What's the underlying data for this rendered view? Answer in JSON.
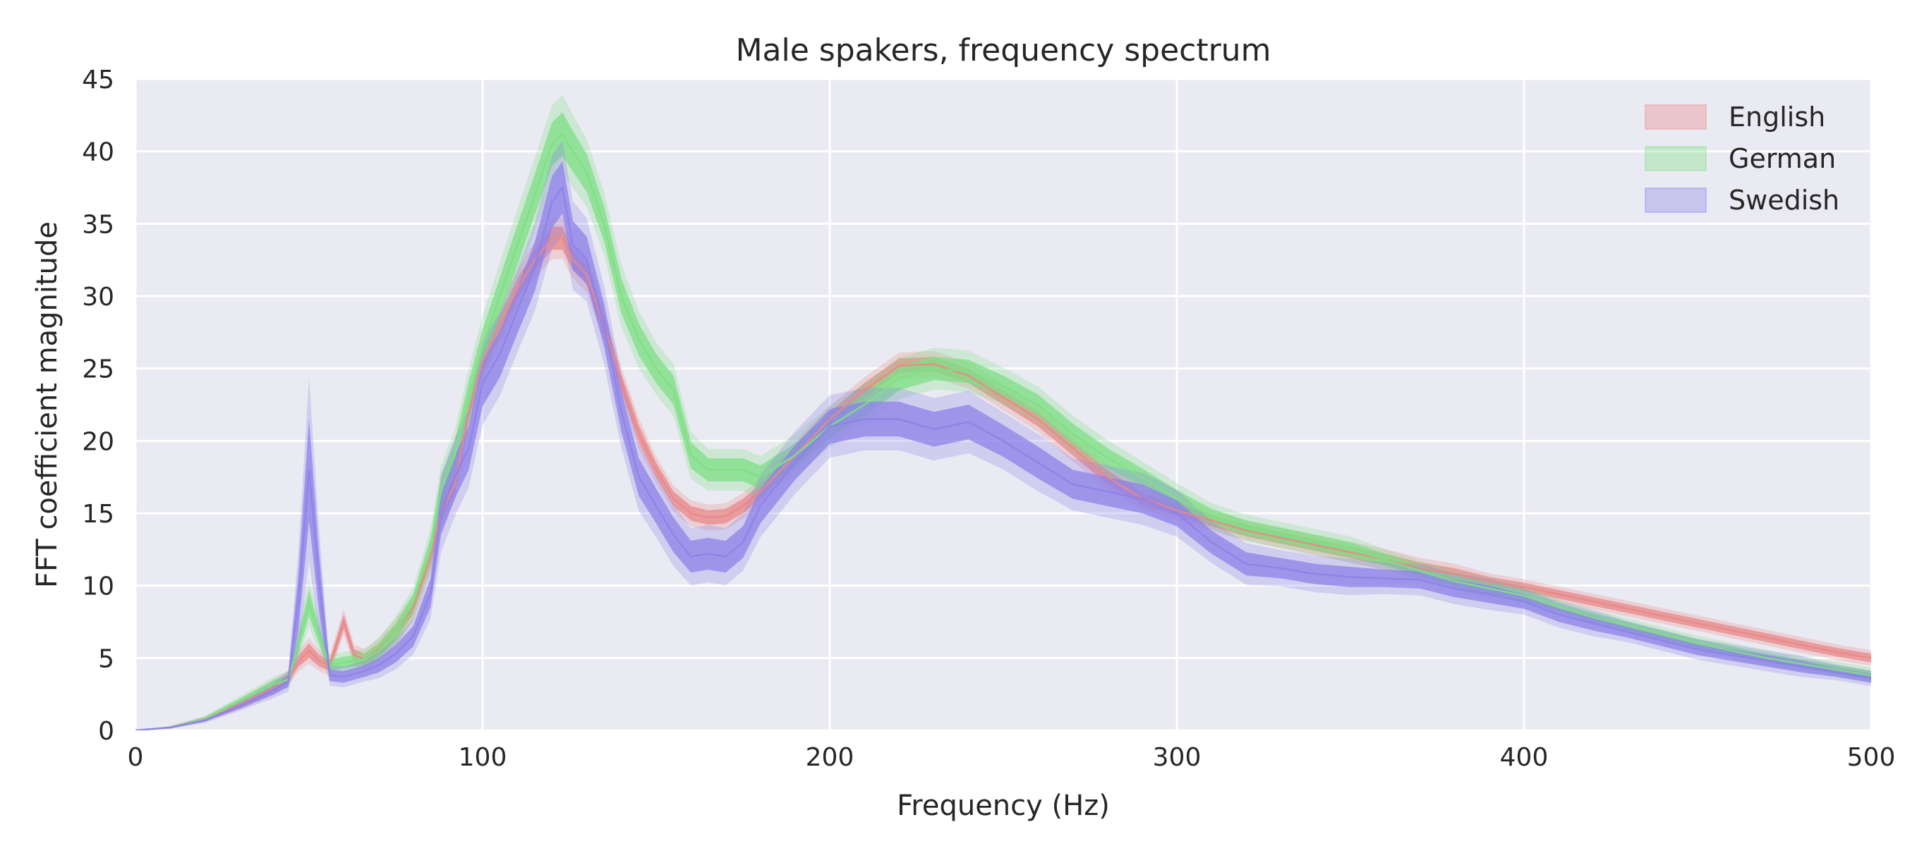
{
  "chart_data": {
    "type": "line",
    "title": "Male spakers, frequency spectrum",
    "xlabel": "Frequency (Hz)",
    "ylabel": "FFT coefficient magnitude",
    "xlim": [
      0,
      500
    ],
    "ylim": [
      0,
      45
    ],
    "xticks": [
      "0",
      "100",
      "200",
      "300",
      "400",
      "500"
    ],
    "yticks": [
      "0",
      "5",
      "10",
      "15",
      "20",
      "25",
      "30",
      "35",
      "40",
      "45"
    ],
    "grid": true,
    "legend_position": "top-right",
    "background": "#eaeaf2",
    "series": [
      {
        "name": "English",
        "color": "#e8888a",
        "x": [
          0,
          10,
          20,
          30,
          40,
          44,
          47,
          50,
          53,
          56,
          60,
          63,
          66,
          70,
          75,
          80,
          85,
          88,
          92,
          96,
          100,
          105,
          110,
          115,
          120,
          123,
          126,
          130,
          135,
          140,
          145,
          150,
          155,
          160,
          165,
          170,
          175,
          180,
          190,
          200,
          210,
          220,
          230,
          240,
          250,
          260,
          270,
          280,
          290,
          300,
          310,
          320,
          330,
          340,
          350,
          360,
          370,
          380,
          390,
          400,
          410,
          420,
          430,
          440,
          450,
          460,
          470,
          480,
          490,
          500
        ],
        "mean": [
          0,
          0.2,
          0.8,
          1.8,
          3.0,
          3.6,
          4.8,
          5.5,
          4.8,
          4.5,
          7.5,
          5.2,
          4.9,
          5.6,
          6.8,
          8.5,
          12.0,
          15.0,
          17.0,
          22.0,
          25.5,
          28.0,
          30.5,
          32.5,
          34.0,
          34.0,
          32.5,
          31.5,
          28.0,
          24.0,
          20.5,
          18.0,
          16.0,
          15.0,
          14.7,
          14.8,
          15.5,
          16.5,
          19.0,
          21.5,
          23.5,
          25.2,
          25.3,
          24.5,
          23.0,
          21.5,
          19.5,
          17.5,
          16.0,
          15.2,
          14.5,
          13.8,
          13.3,
          12.8,
          12.3,
          11.8,
          11.2,
          10.8,
          10.3,
          9.9,
          9.4,
          8.9,
          8.4,
          7.9,
          7.4,
          6.9,
          6.4,
          5.9,
          5.4,
          5.0
        ],
        "band": [
          0,
          0.05,
          0.1,
          0.2,
          0.3,
          0.3,
          0.4,
          0.5,
          0.4,
          0.4,
          0.5,
          0.4,
          0.4,
          0.4,
          0.5,
          0.5,
          0.6,
          0.6,
          0.6,
          0.6,
          0.7,
          0.7,
          0.7,
          0.7,
          0.8,
          0.8,
          0.7,
          0.7,
          0.6,
          0.6,
          0.6,
          0.5,
          0.5,
          0.5,
          0.5,
          0.5,
          0.5,
          0.5,
          0.5,
          0.5,
          0.5,
          0.5,
          0.5,
          0.5,
          0.5,
          0.5,
          0.5,
          0.5,
          0.4,
          0.4,
          0.4,
          0.4,
          0.4,
          0.4,
          0.4,
          0.4,
          0.4,
          0.4,
          0.3,
          0.3,
          0.3,
          0.3,
          0.3,
          0.3,
          0.3,
          0.3,
          0.3,
          0.3,
          0.3,
          0.3
        ]
      },
      {
        "name": "German",
        "color": "#7fdf85",
        "x": [
          0,
          10,
          20,
          30,
          40,
          44,
          47,
          50,
          53,
          56,
          60,
          63,
          66,
          70,
          75,
          80,
          85,
          88,
          92,
          96,
          100,
          105,
          110,
          115,
          120,
          123,
          126,
          130,
          135,
          140,
          145,
          150,
          155,
          160,
          165,
          170,
          175,
          180,
          190,
          200,
          210,
          220,
          230,
          240,
          250,
          260,
          270,
          280,
          290,
          300,
          310,
          320,
          330,
          340,
          350,
          360,
          370,
          380,
          390,
          400,
          410,
          420,
          430,
          440,
          450,
          460,
          470,
          480,
          490,
          500
        ],
        "mean": [
          0,
          0.2,
          0.8,
          2.0,
          3.2,
          3.5,
          6.0,
          8.8,
          6.5,
          4.5,
          4.7,
          4.8,
          4.9,
          5.5,
          6.8,
          8.8,
          12.5,
          16.5,
          19.0,
          23.0,
          26.5,
          30.0,
          33.5,
          37.0,
          40.5,
          41.2,
          40.0,
          38.5,
          35.0,
          30.0,
          27.0,
          25.0,
          23.5,
          19.0,
          18.0,
          18.0,
          18.0,
          17.5,
          19.0,
          21.0,
          22.5,
          24.3,
          25.0,
          24.8,
          23.8,
          22.5,
          20.5,
          18.8,
          17.5,
          16.0,
          14.8,
          14.0,
          13.5,
          13.0,
          12.5,
          11.8,
          11.0,
          10.3,
          9.8,
          9.3,
          8.5,
          7.8,
          7.2,
          6.6,
          6.0,
          5.5,
          5.0,
          4.6,
          4.2,
          3.8
        ],
        "band": [
          0,
          0.05,
          0.1,
          0.2,
          0.3,
          0.3,
          0.6,
          0.9,
          0.6,
          0.4,
          0.4,
          0.4,
          0.4,
          0.5,
          0.6,
          0.6,
          0.8,
          1.0,
          1.0,
          1.1,
          1.2,
          1.3,
          1.4,
          1.4,
          1.5,
          1.5,
          1.4,
          1.3,
          1.2,
          1.2,
          1.1,
          1.0,
          1.0,
          0.9,
          0.8,
          0.8,
          0.8,
          0.8,
          0.8,
          0.8,
          0.8,
          0.8,
          0.8,
          0.8,
          0.7,
          0.7,
          0.7,
          0.7,
          0.6,
          0.6,
          0.5,
          0.5,
          0.5,
          0.5,
          0.5,
          0.4,
          0.4,
          0.4,
          0.4,
          0.4,
          0.3,
          0.3,
          0.3,
          0.3,
          0.3,
          0.3,
          0.3,
          0.3,
          0.3,
          0.3
        ]
      },
      {
        "name": "Swedish",
        "color": "#8d82e8",
        "x": [
          0,
          10,
          20,
          30,
          40,
          44,
          47,
          50,
          53,
          56,
          60,
          63,
          66,
          70,
          75,
          80,
          85,
          88,
          92,
          96,
          100,
          105,
          110,
          115,
          120,
          123,
          126,
          130,
          135,
          140,
          145,
          150,
          155,
          160,
          165,
          170,
          175,
          180,
          190,
          200,
          210,
          220,
          230,
          240,
          250,
          260,
          270,
          280,
          290,
          300,
          310,
          320,
          330,
          340,
          350,
          360,
          370,
          380,
          390,
          400,
          410,
          420,
          430,
          440,
          450,
          460,
          470,
          480,
          490,
          500
        ],
        "mean": [
          0,
          0.2,
          0.7,
          1.7,
          2.8,
          3.4,
          9.0,
          18.0,
          10.0,
          3.8,
          3.7,
          3.9,
          4.1,
          4.5,
          5.3,
          6.5,
          9.5,
          15.0,
          17.5,
          19.5,
          24.0,
          26.0,
          29.0,
          32.0,
          36.5,
          37.5,
          33.5,
          32.5,
          28.0,
          22.0,
          17.5,
          15.5,
          13.5,
          12.0,
          12.2,
          12.0,
          13.0,
          15.5,
          18.5,
          21.0,
          21.5,
          21.5,
          20.8,
          21.3,
          20.0,
          18.5,
          17.0,
          16.5,
          16.0,
          15.0,
          13.0,
          11.5,
          11.2,
          10.8,
          10.6,
          10.5,
          10.4,
          9.8,
          9.4,
          8.9,
          8.0,
          7.4,
          6.8,
          6.2,
          5.6,
          5.2,
          4.8,
          4.4,
          4.0,
          3.6
        ],
        "band": [
          0,
          0.05,
          0.1,
          0.2,
          0.3,
          0.4,
          2.0,
          3.5,
          2.0,
          0.4,
          0.4,
          0.4,
          0.4,
          0.5,
          0.6,
          0.7,
          1.0,
          1.5,
          1.5,
          1.5,
          1.6,
          1.6,
          1.6,
          1.7,
          1.8,
          1.8,
          1.7,
          1.6,
          1.5,
          1.4,
          1.3,
          1.2,
          1.2,
          1.1,
          1.1,
          1.1,
          1.1,
          1.2,
          1.2,
          1.2,
          1.2,
          1.2,
          1.2,
          1.2,
          1.1,
          1.1,
          1.0,
          1.0,
          1.0,
          0.9,
          0.8,
          0.8,
          0.7,
          0.7,
          0.7,
          0.6,
          0.6,
          0.6,
          0.6,
          0.5,
          0.5,
          0.5,
          0.4,
          0.4,
          0.4,
          0.4,
          0.4,
          0.4,
          0.3,
          0.3
        ]
      }
    ]
  }
}
